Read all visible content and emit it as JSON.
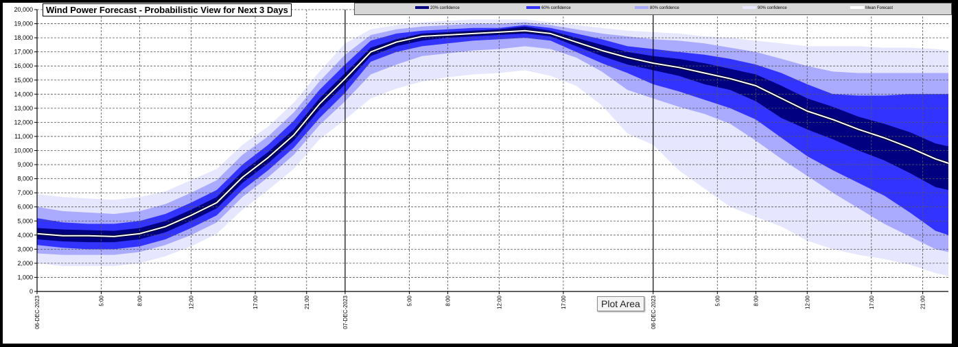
{
  "chart_data": {
    "type": "area",
    "title": "Wind Power Forecast - Probabilistic View for Next 3 Days",
    "ylim": [
      0,
      20000
    ],
    "y_ticks": [
      0,
      1000,
      2000,
      3000,
      4000,
      5000,
      6000,
      7000,
      8000,
      9000,
      10000,
      11000,
      12000,
      13000,
      14000,
      15000,
      16000,
      17000,
      18000,
      19000,
      20000
    ],
    "y_tick_labels": [
      "0",
      "1,000",
      "2,000",
      "3,000",
      "4,000",
      "5,000",
      "6,000",
      "7,000",
      "8,000",
      "9,000",
      "10,000",
      "11,000",
      "12,000",
      "13,000",
      "14,000",
      "15,000",
      "16,000",
      "17,000",
      "18,000",
      "19,000",
      "20,000"
    ],
    "xlim": [
      0,
      71
    ],
    "x_ticks": [
      {
        "hour": 0,
        "label": "06-DEC-2023",
        "major": true
      },
      {
        "hour": 5,
        "label": "5:00",
        "major": false
      },
      {
        "hour": 8,
        "label": "8:00",
        "major": false
      },
      {
        "hour": 12,
        "label": "12:00",
        "major": false
      },
      {
        "hour": 17,
        "label": "17:00",
        "major": false
      },
      {
        "hour": 21,
        "label": "21:00",
        "major": false
      },
      {
        "hour": 24,
        "label": "07-DEC-2023",
        "major": true
      },
      {
        "hour": 29,
        "label": "5:00",
        "major": false
      },
      {
        "hour": 32,
        "label": "8:00",
        "major": false
      },
      {
        "hour": 36,
        "label": "12:00",
        "major": false
      },
      {
        "hour": 41,
        "label": "17:00",
        "major": false
      },
      {
        "hour": 48,
        "label": "08-DEC-2023",
        "major": true
      },
      {
        "hour": 53,
        "label": "5:00",
        "major": false
      },
      {
        "hour": 56,
        "label": "8:00",
        "major": false
      },
      {
        "hour": 60,
        "label": "12:00",
        "major": false
      },
      {
        "hour": 65,
        "label": "17:00",
        "major": false
      },
      {
        "hour": 69,
        "label": "21:00",
        "major": false
      }
    ],
    "x_hours": [
      0,
      2,
      4,
      6,
      8,
      10,
      12,
      14,
      16,
      18,
      20,
      22,
      24,
      26,
      28,
      30,
      32,
      34,
      36,
      38,
      40,
      42,
      44,
      46,
      48,
      50,
      52,
      54,
      56,
      58,
      60,
      62,
      64,
      66,
      68,
      70,
      71
    ],
    "series": [
      {
        "name": "Mean Forecast",
        "color": "#ffffff",
        "values": [
          4100,
          3950,
          3950,
          3900,
          4100,
          4600,
          5400,
          6300,
          8100,
          9500,
          11100,
          13300,
          15100,
          17000,
          17700,
          18100,
          18200,
          18300,
          18400,
          18500,
          18300,
          17700,
          17100,
          16600,
          16200,
          15900,
          15500,
          15100,
          14600,
          13700,
          12800,
          12200,
          11500,
          10900,
          10200,
          9400,
          9100
        ]
      },
      {
        "name": "20% confidence",
        "color": "#000080",
        "upper": [
          4500,
          4400,
          4350,
          4300,
          4500,
          5000,
          5800,
          6700,
          8500,
          9900,
          11500,
          13700,
          15500,
          17300,
          17900,
          18300,
          18400,
          18500,
          18600,
          18800,
          18500,
          18000,
          17500,
          17000,
          16700,
          16500,
          16200,
          15800,
          15400,
          14600,
          13700,
          13100,
          12400,
          11900,
          11300,
          10500,
          10300
        ],
        "lower": [
          3700,
          3550,
          3500,
          3500,
          3700,
          4200,
          5000,
          5900,
          7700,
          9100,
          10700,
          12900,
          14700,
          16700,
          17400,
          17800,
          18000,
          18100,
          18200,
          18300,
          18100,
          17400,
          16700,
          16100,
          15700,
          15300,
          14700,
          14300,
          13500,
          12300,
          11500,
          10800,
          10000,
          9300,
          8400,
          7400,
          7200
        ]
      },
      {
        "name": "60% confidence",
        "color": "#3333ff",
        "upper": [
          5200,
          4900,
          4800,
          4800,
          5000,
          5500,
          6300,
          7200,
          9000,
          10400,
          12100,
          14300,
          16100,
          17800,
          18300,
          18500,
          18600,
          18700,
          18700,
          18900,
          18700,
          18300,
          17900,
          17400,
          17200,
          17000,
          16800,
          16500,
          16100,
          15500,
          14700,
          14000,
          13900,
          13900,
          14000,
          14000,
          14000
        ],
        "lower": [
          3300,
          3100,
          3000,
          3000,
          3200,
          3700,
          4500,
          5400,
          7200,
          8600,
          10200,
          12300,
          14100,
          16300,
          17000,
          17400,
          17600,
          17800,
          17900,
          18000,
          17800,
          17000,
          16200,
          15500,
          14700,
          14200,
          13600,
          13000,
          12200,
          10900,
          9600,
          8600,
          7700,
          6800,
          5600,
          4300,
          4000
        ]
      },
      {
        "name": "80% confidence",
        "color": "#aaaaff",
        "upper": [
          6000,
          5700,
          5600,
          5500,
          5700,
          6200,
          7000,
          7900,
          9700,
          11000,
          12700,
          14900,
          16800,
          18200,
          18600,
          18800,
          18900,
          19000,
          19000,
          19100,
          18900,
          18600,
          18300,
          18100,
          17900,
          17800,
          17600,
          17300,
          17000,
          16500,
          16000,
          15600,
          15500,
          15500,
          15500,
          15500,
          15500
        ],
        "lower": [
          2700,
          2600,
          2600,
          2600,
          2800,
          3300,
          4000,
          4900,
          6700,
          8100,
          9700,
          11800,
          13500,
          15400,
          16100,
          16700,
          16900,
          17100,
          17200,
          17400,
          17200,
          16600,
          15600,
          14300,
          13700,
          13100,
          12600,
          11900,
          10700,
          9400,
          8200,
          7000,
          5900,
          4800,
          3900,
          3000,
          2800
        ]
      },
      {
        "name": "90% confidence",
        "color": "#e6e6ff",
        "upper": [
          6900,
          6700,
          6600,
          6500,
          6700,
          7100,
          7900,
          8700,
          10400,
          11700,
          13400,
          15600,
          17600,
          18600,
          18900,
          19100,
          19200,
          19300,
          19300,
          19300,
          19100,
          18900,
          18700,
          18500,
          18400,
          18300,
          18100,
          18000,
          17800,
          17600,
          17400,
          17400,
          17400,
          17300,
          17300,
          17200,
          17100
        ],
        "lower": [
          2000,
          1800,
          1800,
          1800,
          2000,
          2500,
          3200,
          4100,
          5800,
          7200,
          8700,
          10800,
          12200,
          13700,
          14400,
          14900,
          15200,
          15400,
          15500,
          15700,
          15300,
          14600,
          13200,
          11200,
          10400,
          8600,
          7300,
          6000,
          5300,
          4600,
          3600,
          3000,
          2600,
          2300,
          1900,
          1300,
          1100
        ]
      }
    ],
    "grid": true
  },
  "legend": [
    {
      "label": "20% confidence",
      "color": "#000080"
    },
    {
      "label": "60% confidence",
      "color": "#3333ff"
    },
    {
      "label": "80% confidence",
      "color": "#aaaaff"
    },
    {
      "label": "90% confidence",
      "color": "#e6e6ff"
    },
    {
      "label": "Mean Forecast",
      "color": "#ffffff"
    }
  ],
  "tooltip": "Plot Area"
}
